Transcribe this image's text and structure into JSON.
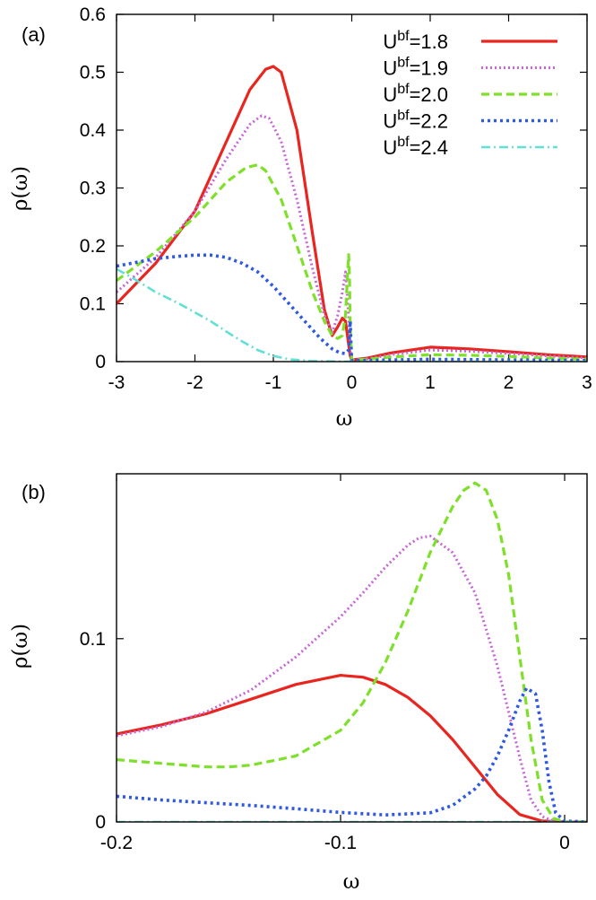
{
  "chart_data": [
    {
      "type": "line",
      "panel_label": "(a)",
      "xlabel": "ω",
      "ylabel": "ρ(ω)",
      "xlim": [
        -3,
        3
      ],
      "ylim": [
        0,
        0.6
      ],
      "xticks": [
        -3,
        -2,
        -1,
        0,
        1,
        2,
        3
      ],
      "xtick_labels": [
        "-3",
        "-2",
        "-1",
        "0",
        "1",
        "2",
        "3"
      ],
      "yticks": [
        0,
        0.1,
        0.2,
        0.3,
        0.4,
        0.5,
        0.6
      ],
      "ytick_labels": [
        "0",
        "0.1",
        "0.2",
        "0.3",
        "0.4",
        "0.5",
        "0.6"
      ],
      "legend_position": "top-right",
      "series": [
        {
          "name": "U^bf=1.8",
          "legend_base": "U",
          "legend_sup": "bf",
          "legend_value": "=1.8",
          "color": "#e8251f",
          "dash": "solid",
          "x": [
            -3,
            -2.5,
            -2,
            -1.6,
            -1.3,
            -1.1,
            -1.0,
            -0.9,
            -0.7,
            -0.5,
            -0.35,
            -0.25,
            -0.18,
            -0.12,
            -0.08,
            -0.05,
            -0.02,
            0,
            0.2,
            0.5,
            1.0,
            1.5,
            2.0,
            2.5,
            3.0
          ],
          "y": [
            0.1,
            0.17,
            0.26,
            0.38,
            0.47,
            0.505,
            0.51,
            0.5,
            0.4,
            0.22,
            0.09,
            0.045,
            0.06,
            0.075,
            0.07,
            0.04,
            0.01,
            0.003,
            0.006,
            0.015,
            0.025,
            0.022,
            0.017,
            0.012,
            0.008
          ]
        },
        {
          "name": "U^bf=1.9",
          "legend_base": "U",
          "legend_sup": "bf",
          "legend_value": "=1.9",
          "color": "#c866d8",
          "dash": "dot",
          "x": [
            -3,
            -2.5,
            -2,
            -1.6,
            -1.3,
            -1.15,
            -1.05,
            -0.9,
            -0.7,
            -0.5,
            -0.35,
            -0.25,
            -0.18,
            -0.12,
            -0.08,
            -0.05,
            -0.02,
            0,
            0.2,
            0.5,
            1.0,
            1.5,
            2.0,
            2.5,
            3.0
          ],
          "y": [
            0.12,
            0.18,
            0.26,
            0.35,
            0.41,
            0.425,
            0.42,
            0.38,
            0.28,
            0.16,
            0.08,
            0.05,
            0.08,
            0.12,
            0.155,
            0.1,
            0.03,
            0.003,
            0.005,
            0.012,
            0.02,
            0.018,
            0.014,
            0.01,
            0.006
          ]
        },
        {
          "name": "U^bf=2.0",
          "legend_base": "U",
          "legend_sup": "bf",
          "legend_value": "=2.0",
          "color": "#7fe02b",
          "dash": "dash",
          "x": [
            -3,
            -2.5,
            -2,
            -1.6,
            -1.35,
            -1.2,
            -1.1,
            -0.9,
            -0.7,
            -0.5,
            -0.35,
            -0.25,
            -0.18,
            -0.12,
            -0.08,
            -0.05,
            -0.04,
            -0.03,
            -0.02,
            0,
            0.2,
            0.5,
            1.0,
            1.5,
            2.0,
            2.5,
            3.0
          ],
          "y": [
            0.14,
            0.19,
            0.25,
            0.31,
            0.335,
            0.34,
            0.33,
            0.28,
            0.2,
            0.12,
            0.07,
            0.045,
            0.04,
            0.045,
            0.08,
            0.16,
            0.185,
            0.15,
            0.06,
            0.003,
            0.004,
            0.008,
            0.012,
            0.011,
            0.009,
            0.006,
            0.004
          ]
        },
        {
          "name": "U^bf=2.2",
          "legend_base": "U",
          "legend_sup": "bf",
          "legend_value": "=2.2",
          "color": "#2e59e0",
          "dash": "densedot",
          "x": [
            -3,
            -2.5,
            -2.2,
            -2.0,
            -1.8,
            -1.6,
            -1.4,
            -1.2,
            -1.0,
            -0.8,
            -0.6,
            -0.4,
            -0.25,
            -0.15,
            -0.08,
            -0.04,
            -0.02,
            -0.01,
            0,
            0.2,
            0.5,
            1.0,
            2.0,
            3.0
          ],
          "y": [
            0.165,
            0.178,
            0.182,
            0.184,
            0.184,
            0.18,
            0.17,
            0.155,
            0.13,
            0.1,
            0.07,
            0.04,
            0.022,
            0.015,
            0.014,
            0.02,
            0.07,
            0.03,
            0.002,
            0.002,
            0.003,
            0.004,
            0.003,
            0.002
          ]
        },
        {
          "name": "U^bf=2.4",
          "legend_base": "U",
          "legend_sup": "bf",
          "legend_value": "=2.4",
          "color": "#63dfd6",
          "dash": "dashdot",
          "x": [
            -3,
            -2.8,
            -2.5,
            -2.2,
            -2.0,
            -1.8,
            -1.6,
            -1.4,
            -1.2,
            -1.0,
            -0.8,
            -0.5,
            0,
            1,
            2,
            3
          ],
          "y": [
            0.16,
            0.145,
            0.12,
            0.1,
            0.085,
            0.07,
            0.052,
            0.035,
            0.02,
            0.01,
            0.004,
            0.001,
            0,
            0,
            0,
            0
          ]
        }
      ]
    },
    {
      "type": "line",
      "panel_label": "(b)",
      "xlabel": "ω",
      "ylabel": "ρ(ω)",
      "xlim": [
        -0.2,
        0.01
      ],
      "ylim": [
        0,
        0.19
      ],
      "xticks": [
        -0.2,
        -0.1,
        0
      ],
      "xtick_labels": [
        "-0.2",
        "-0.1",
        "0"
      ],
      "yticks": [
        0,
        0.1
      ],
      "ytick_labels": [
        "0",
        "0.1"
      ],
      "series": [
        {
          "name": "U^bf=1.8",
          "color": "#e8251f",
          "dash": "solid",
          "x": [
            -0.2,
            -0.18,
            -0.16,
            -0.14,
            -0.12,
            -0.1,
            -0.09,
            -0.08,
            -0.07,
            -0.06,
            -0.05,
            -0.04,
            -0.03,
            -0.02,
            -0.01,
            0,
            0.01
          ],
          "y": [
            0.048,
            0.053,
            0.059,
            0.067,
            0.075,
            0.08,
            0.079,
            0.075,
            0.068,
            0.058,
            0.045,
            0.03,
            0.015,
            0.004,
            0.0005,
            0,
            0
          ]
        },
        {
          "name": "U^bf=1.9",
          "color": "#c866d8",
          "dash": "dot",
          "x": [
            -0.2,
            -0.18,
            -0.16,
            -0.14,
            -0.12,
            -0.1,
            -0.09,
            -0.08,
            -0.07,
            -0.065,
            -0.06,
            -0.05,
            -0.04,
            -0.03,
            -0.02,
            -0.015,
            -0.01,
            -0.005,
            0,
            0.01
          ],
          "y": [
            0.047,
            0.052,
            0.06,
            0.072,
            0.09,
            0.112,
            0.125,
            0.139,
            0.151,
            0.155,
            0.156,
            0.147,
            0.125,
            0.085,
            0.035,
            0.012,
            0.003,
            0.0005,
            0,
            0
          ]
        },
        {
          "name": "U^bf=2.0",
          "color": "#7fe02b",
          "dash": "dash",
          "x": [
            -0.2,
            -0.18,
            -0.16,
            -0.15,
            -0.14,
            -0.12,
            -0.1,
            -0.09,
            -0.08,
            -0.07,
            -0.06,
            -0.05,
            -0.045,
            -0.04,
            -0.035,
            -0.03,
            -0.025,
            -0.02,
            -0.015,
            -0.01,
            -0.005,
            0,
            0.01
          ],
          "y": [
            0.034,
            0.032,
            0.03,
            0.03,
            0.031,
            0.036,
            0.05,
            0.065,
            0.087,
            0.115,
            0.147,
            0.172,
            0.181,
            0.185,
            0.181,
            0.165,
            0.135,
            0.09,
            0.045,
            0.012,
            0.002,
            0,
            0
          ]
        },
        {
          "name": "U^bf=2.2",
          "color": "#2e59e0",
          "dash": "densedot",
          "x": [
            -0.2,
            -0.18,
            -0.16,
            -0.14,
            -0.12,
            -0.1,
            -0.08,
            -0.06,
            -0.05,
            -0.04,
            -0.035,
            -0.03,
            -0.025,
            -0.02,
            -0.017,
            -0.013,
            -0.01,
            -0.007,
            -0.004,
            0,
            0.01
          ],
          "y": [
            0.014,
            0.012,
            0.0105,
            0.009,
            0.0072,
            0.0052,
            0.0038,
            0.005,
            0.009,
            0.018,
            0.025,
            0.036,
            0.05,
            0.066,
            0.073,
            0.07,
            0.05,
            0.022,
            0.005,
            0.0005,
            0
          ]
        },
        {
          "name": "U^bf=2.4",
          "color": "#63dfd6",
          "dash": "dashdot",
          "x": [
            -0.2,
            0.01
          ],
          "y": [
            0,
            0
          ]
        }
      ]
    }
  ]
}
